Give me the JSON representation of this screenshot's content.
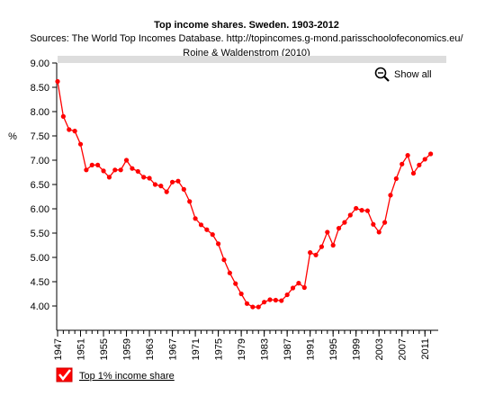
{
  "chart_data": {
    "type": "line",
    "title": "Top income shares. Sweden. 1903-2012",
    "subtitle_lines": [
      "Sources: The World Top Incomes Database. http://topincomes.g-mond.parisschoolofeconomics.eu/",
      "Roine & Waldenstrom (2010)"
    ],
    "ylabel": "%",
    "xlabel": "",
    "xlim": [
      1947,
      2013
    ],
    "ylim": [
      3.5,
      9.0
    ],
    "y_ticks": [
      "9.00",
      "8.50",
      "8.00",
      "7.50",
      "7.00",
      "6.50",
      "6.00",
      "5.50",
      "5.00",
      "4.50",
      "4.00"
    ],
    "y_tick_values": [
      9.0,
      8.5,
      8.0,
      7.5,
      7.0,
      6.5,
      6.0,
      5.5,
      5.0,
      4.5,
      4.0
    ],
    "x_ticks": [
      "1947",
      "1951",
      "1955",
      "1959",
      "1963",
      "1967",
      "1971",
      "1975",
      "1979",
      "1983",
      "1987",
      "1991",
      "1995",
      "1999",
      "2003",
      "2007",
      "2011"
    ],
    "x_tick_values": [
      1947,
      1951,
      1955,
      1959,
      1963,
      1967,
      1971,
      1975,
      1979,
      1983,
      1987,
      1991,
      1995,
      1999,
      2003,
      2007,
      2011
    ],
    "grid": false,
    "legend_position": "bottom-left",
    "series": [
      {
        "name": "Top 1% income share",
        "color": "#ff0000",
        "x": [
          1947,
          1948,
          1949,
          1950,
          1951,
          1952,
          1953,
          1954,
          1955,
          1956,
          1957,
          1958,
          1959,
          1960,
          1961,
          1962,
          1963,
          1964,
          1965,
          1966,
          1967,
          1968,
          1969,
          1970,
          1971,
          1972,
          1973,
          1974,
          1975,
          1976,
          1977,
          1978,
          1979,
          1980,
          1981,
          1982,
          1983,
          1984,
          1985,
          1986,
          1987,
          1988,
          1989,
          1990,
          1991,
          1992,
          1993,
          1994,
          1995,
          1996,
          1997,
          1998,
          1999,
          2000,
          2001,
          2002,
          2003,
          2004,
          2005,
          2006,
          2007,
          2008,
          2009,
          2010,
          2011,
          2012
        ],
        "values": [
          8.62,
          7.9,
          7.63,
          7.6,
          7.33,
          6.8,
          6.9,
          6.9,
          6.78,
          6.65,
          6.8,
          6.8,
          7.0,
          6.83,
          6.77,
          6.65,
          6.63,
          6.5,
          6.47,
          6.35,
          6.55,
          6.57,
          6.4,
          6.15,
          5.8,
          5.67,
          5.57,
          5.47,
          5.28,
          4.95,
          4.68,
          4.46,
          4.25,
          4.05,
          3.98,
          3.98,
          4.08,
          4.13,
          4.12,
          4.11,
          4.23,
          4.37,
          4.47,
          4.38,
          5.1,
          5.05,
          5.22,
          5.52,
          5.25,
          5.6,
          5.72,
          5.87,
          6.01,
          5.97,
          5.96,
          5.68,
          5.52,
          5.72,
          6.28,
          6.62,
          6.92,
          7.1,
          6.73,
          6.9,
          7.02,
          7.13
        ]
      }
    ]
  },
  "controls": {
    "show_all_label": "Show all",
    "zoom_icon": "zoom-out-magnifier-icon"
  },
  "legend": {
    "checkbox_checked": true,
    "checkbox_color": "#ff0000"
  }
}
